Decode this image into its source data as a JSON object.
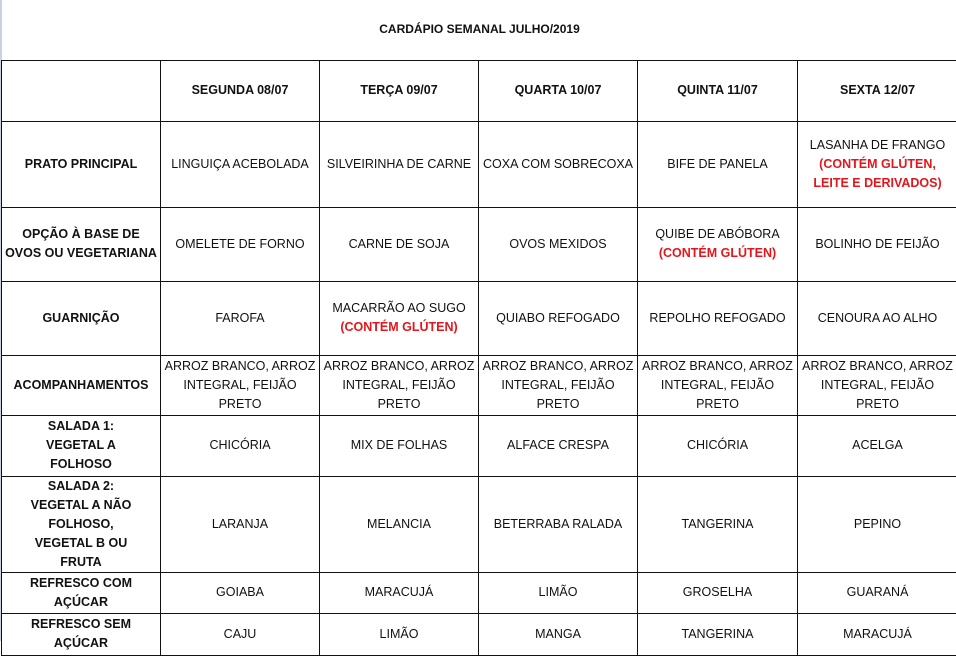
{
  "title": "CARDÁPIO SEMANAL JULHO/2019",
  "days": [
    "SEGUNDA   08/07",
    "TERÇA 09/07",
    "QUARTA 10/07",
    "QUINTA 11/07",
    "SEXTA 12/07"
  ],
  "accent_color": "#e4161b",
  "rows": [
    {
      "label": "PRATO PRINCIPAL",
      "cells": [
        {
          "text": "LINGUIÇA ACEBOLADA"
        },
        {
          "text": "SILVEIRINHA DE CARNE"
        },
        {
          "text": "COXA COM SOBRECOXA"
        },
        {
          "text": "BIFE DE PANELA"
        },
        {
          "text": "LASANHA DE FRANGO",
          "note": "(CONTÉM GLÚTEN, LEITE E DERIVADOS)"
        }
      ]
    },
    {
      "label": "OPÇÃO À BASE DE OVOS OU VEGETARIANA",
      "cells": [
        {
          "text": "OMELETE DE FORNO"
        },
        {
          "text": "CARNE DE SOJA"
        },
        {
          "text": "OVOS MEXIDOS"
        },
        {
          "text": "QUIBE DE ABÓBORA",
          "note": "(CONTÉM GLÚTEN)"
        },
        {
          "text": "BOLINHO DE FEIJÃO"
        }
      ]
    },
    {
      "label": "GUARNIÇÃO",
      "cells": [
        {
          "text": "FAROFA"
        },
        {
          "text": "MACARRÃO AO SUGO",
          "note": "(CONTÉM GLÚTEN)"
        },
        {
          "text": "QUIABO REFOGADO"
        },
        {
          "text": "REPOLHO REFOGADO"
        },
        {
          "text": "CENOURA AO ALHO"
        }
      ]
    },
    {
      "label": "ACOMPANHAMENTOS",
      "cells": [
        {
          "text": "ARROZ BRANCO, ARROZ INTEGRAL, FEIJÃO PRETO"
        },
        {
          "text": "ARROZ BRANCO, ARROZ INTEGRAL, FEIJÃO PRETO"
        },
        {
          "text": "ARROZ BRANCO, ARROZ INTEGRAL, FEIJÃO PRETO"
        },
        {
          "text": "ARROZ BRANCO, ARROZ INTEGRAL, FEIJÃO PRETO"
        },
        {
          "text": "ARROZ BRANCO, ARROZ INTEGRAL, FEIJÃO PRETO"
        }
      ]
    },
    {
      "label": "SALADA 1: VEGETAL A FOLHOSO",
      "cells": [
        {
          "text": "CHICÓRIA"
        },
        {
          "text": "MIX DE FOLHAS"
        },
        {
          "text": "ALFACE  CRESPA"
        },
        {
          "text": "CHICÓRIA"
        },
        {
          "text": "ACELGA"
        }
      ]
    },
    {
      "label": "SALADA 2: VEGETAL A NÃO FOLHOSO, VEGETAL B OU FRUTA",
      "cells": [
        {
          "text": "LARANJA"
        },
        {
          "text": "MELANCIA"
        },
        {
          "text": "BETERRABA RALADA"
        },
        {
          "text": "TANGERINA"
        },
        {
          "text": "PEPINO"
        }
      ]
    },
    {
      "label": "REFRESCO COM AÇÚCAR",
      "cells": [
        {
          "text": "GOIABA"
        },
        {
          "text": "MARACUJÁ"
        },
        {
          "text": "LIMÃO"
        },
        {
          "text": "GROSELHA"
        },
        {
          "text": "GUARANÁ"
        }
      ]
    },
    {
      "label": "REFRESCO SEM AÇÚCAR",
      "cells": [
        {
          "text": "CAJU"
        },
        {
          "text": "LIMÃO"
        },
        {
          "text": "MANGA"
        },
        {
          "text": "TANGERINA"
        },
        {
          "text": "MARACUJÁ"
        }
      ]
    }
  ]
}
